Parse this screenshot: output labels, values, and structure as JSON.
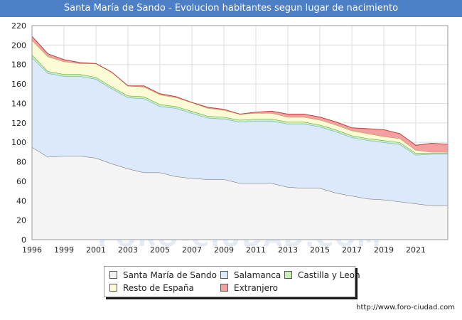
{
  "title": "Santa María de Sando - Evolucion habitantes segun lugar de nacimiento",
  "footer_url": "http://www.foro-ciudad.com",
  "watermark": "FORO-CIUDAD.COM",
  "chart_data": {
    "type": "area",
    "stacked": true,
    "x": [
      1996,
      1997,
      1998,
      1999,
      2000,
      2001,
      2002,
      2003,
      2004,
      2005,
      2006,
      2007,
      2008,
      2009,
      2010,
      2011,
      2012,
      2013,
      2014,
      2015,
      2016,
      2017,
      2018,
      2019,
      2020,
      2021,
      2022
    ],
    "x_ticks": [
      1996,
      1999,
      2001,
      2003,
      2005,
      2007,
      2009,
      2011,
      2013,
      2015,
      2017,
      2019,
      2021
    ],
    "x_tick_positions": [
      1996,
      1998,
      2000,
      2002,
      2004,
      2006,
      2008,
      2010,
      2012,
      2014,
      2016,
      2018,
      2020
    ],
    "xlim": [
      1996,
      2022
    ],
    "ylim": [
      0,
      220
    ],
    "y_ticks": [
      0,
      20,
      40,
      60,
      80,
      100,
      120,
      140,
      160,
      180,
      200,
      220
    ],
    "grid": true,
    "legend_position": "bottom",
    "series": [
      {
        "name": "Santa María de Sando",
        "color": "#f4f4f4",
        "line": "#666666",
        "values": [
          95,
          85,
          86,
          86,
          84,
          78,
          73,
          69,
          69,
          65,
          63,
          62,
          62,
          58,
          58,
          58,
          54,
          53,
          53,
          48,
          45,
          42,
          41,
          39,
          37,
          35,
          35
        ]
      },
      {
        "name": "Salamanca",
        "color": "#dbe9fb",
        "line": "#6a9fd8",
        "values": [
          92,
          86,
          82,
          82,
          81,
          77,
          73,
          76,
          68,
          70,
          67,
          63,
          62,
          63,
          64,
          64,
          65,
          66,
          63,
          63,
          60,
          60,
          59,
          59,
          50,
          53,
          53
        ]
      },
      {
        "name": "Castilla y Leon",
        "color": "#c8f0b4",
        "line": "#4d9e3a",
        "values": [
          3,
          2,
          2,
          2,
          2,
          2,
          2,
          2,
          2,
          2,
          2,
          2,
          2,
          2,
          2,
          2,
          2,
          2,
          2,
          2,
          2,
          2,
          2,
          2,
          2,
          1,
          1
        ]
      },
      {
        "name": "Resto de España",
        "color": "#fbfbd6",
        "line": "#a8a858",
        "values": [
          15,
          15,
          13,
          11,
          14,
          15,
          10,
          10,
          10,
          9,
          9,
          8,
          7,
          6,
          6,
          6,
          5,
          5,
          5,
          5,
          5,
          5,
          4,
          4,
          3,
          1,
          1
        ]
      },
      {
        "name": "Extranjero",
        "color": "#f4a0a0",
        "line": "#c04040",
        "values": [
          4,
          3,
          2,
          1,
          0,
          0,
          0,
          1,
          1,
          1,
          0,
          1,
          1,
          0,
          1,
          2,
          3,
          3,
          3,
          3,
          3,
          5,
          7,
          5,
          5,
          9,
          8
        ]
      }
    ]
  }
}
